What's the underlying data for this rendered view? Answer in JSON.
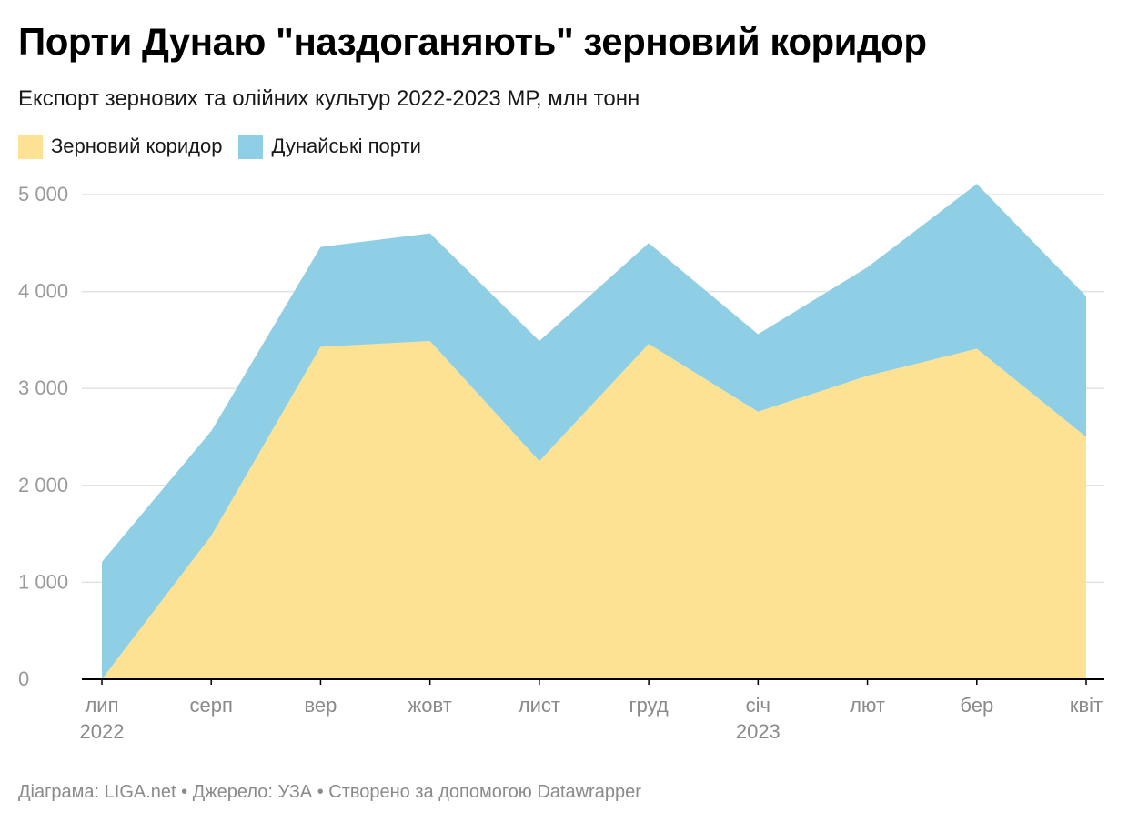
{
  "title": "Порти Дунаю \"наздоганяють\" зерновий коридор",
  "subtitle": "Експорт зернових та олійних культур 2022-2023 МР, млн тонн",
  "legend": [
    {
      "label": "Зерновий коридор",
      "color": "#fde293"
    },
    {
      "label": "Дунайські порти",
      "color": "#8ecfe5"
    }
  ],
  "footer": "Діаграма: LIGA.net • Джерело: УЗА • Створено за допомогою Datawrapper",
  "chart_data": {
    "type": "area",
    "stacked": true,
    "categories": [
      "лип",
      "серп",
      "вер",
      "жовт",
      "лист",
      "груд",
      "січ",
      "лют",
      "бер",
      "квіт"
    ],
    "category_sublabels": [
      "2022",
      "",
      "",
      "",
      "",
      "",
      "2023",
      "",
      "",
      ""
    ],
    "series": [
      {
        "name": "Зерновий коридор",
        "color": "#fde293",
        "values": [
          0,
          1480,
          3430,
          3490,
          2250,
          3460,
          2760,
          3130,
          3410,
          2500
        ]
      },
      {
        "name": "Дунайські порти",
        "color": "#8ecfe5",
        "values": [
          1210,
          1080,
          1030,
          1110,
          1240,
          1040,
          800,
          1120,
          1700,
          1450
        ]
      }
    ],
    "ylim": [
      0,
      5000
    ],
    "yticks": [
      0,
      1000,
      2000,
      3000,
      4000,
      5000
    ],
    "ytick_labels": [
      "0",
      "1 000",
      "2 000",
      "3 000",
      "4 000",
      "5 000"
    ],
    "grid": true,
    "legend_position": "top-left"
  }
}
